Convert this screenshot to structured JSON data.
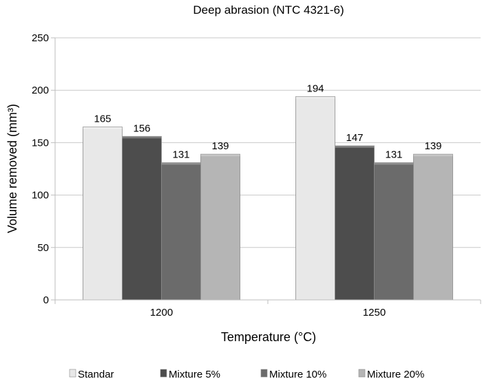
{
  "chart_data": {
    "type": "bar",
    "title": "Deep abrasion (NTC 4321-6)",
    "xlabel": "Temperature (°C)",
    "ylabel": "Volume removed (mm³)",
    "ylim": [
      0,
      250
    ],
    "yticks": [
      0,
      50,
      100,
      150,
      200,
      250
    ],
    "categories": [
      "1200",
      "1250"
    ],
    "series": [
      {
        "name": "Standar",
        "values": [
          165,
          194
        ],
        "color": "#e8e8e8"
      },
      {
        "name": "Mixture 5%",
        "values": [
          156,
          147
        ],
        "color": "#4d4d4d"
      },
      {
        "name": "Mixture 10%",
        "values": [
          131,
          131
        ],
        "color": "#6b6b6b"
      },
      {
        "name": "Mixture 20%",
        "values": [
          139,
          139
        ],
        "color": "#b5b5b5"
      }
    ],
    "grid": true,
    "legend": "bottom"
  }
}
